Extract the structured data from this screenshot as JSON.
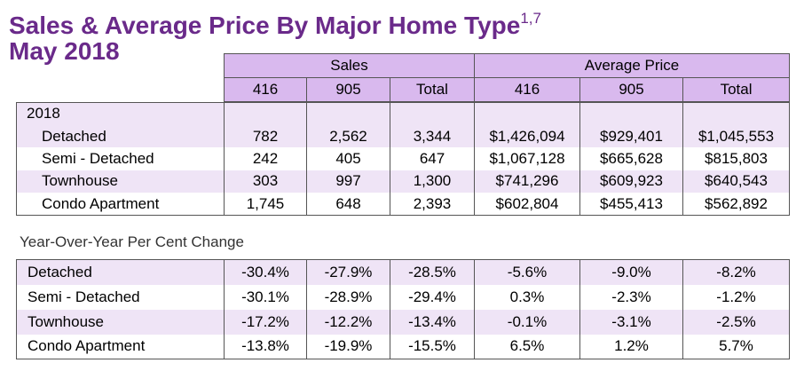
{
  "title": "Sales & Average Price By Major Home Type",
  "title_superscript": "1,7",
  "subtitle": "May 2018",
  "header": {
    "group_sales": "Sales",
    "group_avg": "Average Price",
    "cols": [
      "416",
      "905",
      "Total",
      "416",
      "905",
      "Total"
    ]
  },
  "year_label": "2018",
  "rows": [
    {
      "label": "Detached",
      "values": [
        "782",
        "2,562",
        "3,344",
        "$1,426,094",
        "$929,401",
        "$1,045,553"
      ]
    },
    {
      "label": "Semi - Detached",
      "values": [
        "242",
        "405",
        "647",
        "$1,067,128",
        "$665,628",
        "$815,803"
      ]
    },
    {
      "label": "Townhouse",
      "values": [
        "303",
        "997",
        "1,300",
        "$741,296",
        "$609,923",
        "$640,543"
      ]
    },
    {
      "label": "Condo Apartment",
      "values": [
        "1,745",
        "648",
        "2,393",
        "$602,804",
        "$455,413",
        "$562,892"
      ]
    }
  ],
  "yoy_title": "Year-Over-Year Per Cent Change",
  "yoy_rows": [
    {
      "label": "Detached",
      "values": [
        "-30.4%",
        "-27.9%",
        "-28.5%",
        "-5.6%",
        "-9.0%",
        "-8.2%"
      ]
    },
    {
      "label": "Semi - Detached",
      "values": [
        "-30.1%",
        "-28.9%",
        "-29.4%",
        "0.3%",
        "-2.3%",
        "-1.2%"
      ]
    },
    {
      "label": "Townhouse",
      "values": [
        "-17.2%",
        "-12.2%",
        "-13.4%",
        "-0.1%",
        "-3.1%",
        "-2.5%"
      ]
    },
    {
      "label": "Condo Apartment",
      "values": [
        "-13.8%",
        "-19.9%",
        "-15.5%",
        "6.5%",
        "1.2%",
        "5.7%"
      ]
    }
  ],
  "colors": {
    "title": "#6a2a8a",
    "header_bg": "#d9b9ee",
    "row_shade": "#efe4f6"
  }
}
